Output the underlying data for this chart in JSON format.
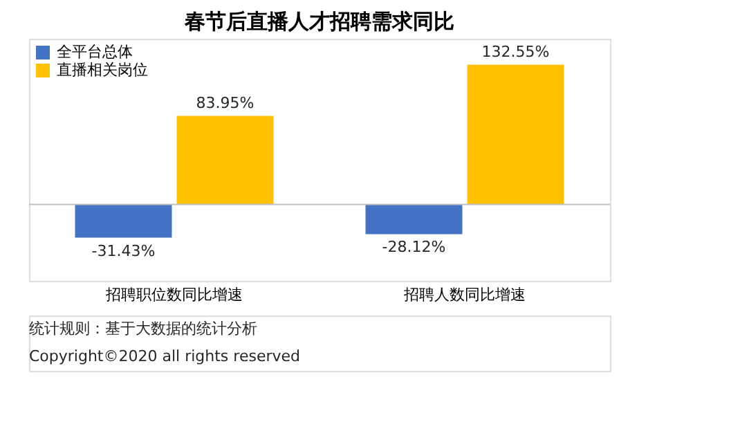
{
  "chart_data": {
    "type": "bar",
    "title": "春节后直播人才招聘需求同比",
    "categories": [
      "招聘职位数同比增速",
      "招聘人数同比增速"
    ],
    "series": [
      {
        "name": "全平台总体",
        "color": "#4472c4",
        "values": [
          -31.43,
          -28.12
        ],
        "value_labels": [
          "-31.43%",
          "-28.12%"
        ]
      },
      {
        "name": "直播相关岗位",
        "color": "#ffc000",
        "values": [
          83.95,
          132.55
        ],
        "value_labels": [
          "83.95%",
          "132.55%"
        ]
      }
    ],
    "legend": "top left",
    "grid": false,
    "annotations": [
      "统计规则：基于大数据的统计分析",
      "Copyright©2020 all rights reserved"
    ]
  }
}
